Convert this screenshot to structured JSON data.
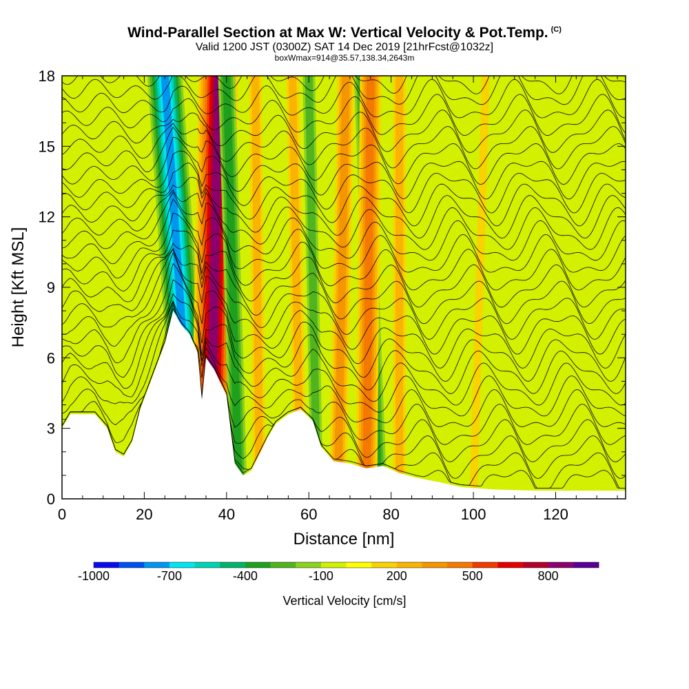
{
  "header": {
    "title": "Wind-Parallel Section at Max W: Vertical Velocity & Pot.Temp.",
    "title_corner": "(C)",
    "valid_line": "Valid 1200 JST (0300Z) SAT 14 Dec 2019 [21hrFcst@1032z]",
    "box_line": "boxWmax=914@35.57,138.34,2643m"
  },
  "chart_data": {
    "type": "heatmap",
    "xlabel": "Distance [nm]",
    "ylabel": "Height [Kft MSL]",
    "xlim": [
      0,
      137
    ],
    "ylim": [
      0,
      18
    ],
    "x_ticks": [
      "0",
      "20",
      "40",
      "60",
      "80",
      "100",
      "120"
    ],
    "y_ticks": [
      "0",
      "3",
      "6",
      "9",
      "12",
      "15",
      "18"
    ],
    "fill_variable": "Vertical Velocity",
    "contour_variable": "Pot.Temp.",
    "colorbar": {
      "label": "Vertical Velocity [cm/s]",
      "tick_labels": [
        "-1000",
        "-700",
        "-400",
        "-100",
        "200",
        "500",
        "800"
      ],
      "colors": [
        "#0a0af0",
        "#0050f0",
        "#0096f0",
        "#00e6f0",
        "#00d2b4",
        "#00b46e",
        "#1ea01e",
        "#50b41e",
        "#8cd21e",
        "#d2f000",
        "#ffff00",
        "#fad200",
        "#fab400",
        "#f59600",
        "#f57800",
        "#f03c00",
        "#e60000",
        "#b40028",
        "#8c006e",
        "#5a0096"
      ]
    },
    "terrain_kft": [
      [
        0,
        3.0
      ],
      [
        2,
        3.6
      ],
      [
        8,
        3.6
      ],
      [
        11,
        3.0
      ],
      [
        13,
        2.0
      ],
      [
        15,
        1.8
      ],
      [
        17,
        2.4
      ],
      [
        19,
        3.8
      ],
      [
        22,
        5.2
      ],
      [
        25,
        6.6
      ],
      [
        27,
        8.0
      ],
      [
        29,
        7.4
      ],
      [
        31,
        7.0
      ],
      [
        33,
        6.2
      ],
      [
        34,
        4.2
      ],
      [
        35,
        6.0
      ],
      [
        37,
        5.5
      ],
      [
        40,
        4.4
      ],
      [
        42,
        1.5
      ],
      [
        44,
        1.0
      ],
      [
        46,
        1.2
      ],
      [
        48,
        1.9
      ],
      [
        50,
        2.6
      ],
      [
        52,
        3.2
      ],
      [
        55,
        3.6
      ],
      [
        58,
        3.8
      ],
      [
        61,
        3.3
      ],
      [
        63,
        2.2
      ],
      [
        66,
        1.6
      ],
      [
        70,
        1.5
      ],
      [
        74,
        1.3
      ],
      [
        78,
        1.4
      ],
      [
        82,
        1.1
      ],
      [
        86,
        0.9
      ],
      [
        92,
        0.7
      ],
      [
        97,
        0.5
      ],
      [
        105,
        0.4
      ],
      [
        115,
        0.35
      ],
      [
        125,
        0.35
      ],
      [
        137,
        0.35
      ]
    ],
    "w_bands_cm_s": [
      {
        "x_bottom": 32,
        "x_top": 25,
        "value": -700
      },
      {
        "x_bottom": 36,
        "x_top": 38,
        "value": 800
      },
      {
        "x_bottom": 43,
        "x_top": 40,
        "value": -300
      },
      {
        "x_bottom": 48,
        "x_top": 47,
        "value": 200
      },
      {
        "x_bottom": 58,
        "x_top": 56,
        "value": 200
      },
      {
        "x_bottom": 62,
        "x_top": 60,
        "value": -200
      },
      {
        "x_bottom": 67,
        "x_top": 69,
        "value": 300
      },
      {
        "x_bottom": 77,
        "x_top": 73,
        "value": -300
      },
      {
        "x_bottom": 74,
        "x_top": 75,
        "value": 350
      },
      {
        "x_bottom": 82,
        "x_top": 82,
        "value": 150
      },
      {
        "x_bottom": 100,
        "x_top": 103,
        "value": 100
      }
    ],
    "theta_contour_count": 30
  }
}
